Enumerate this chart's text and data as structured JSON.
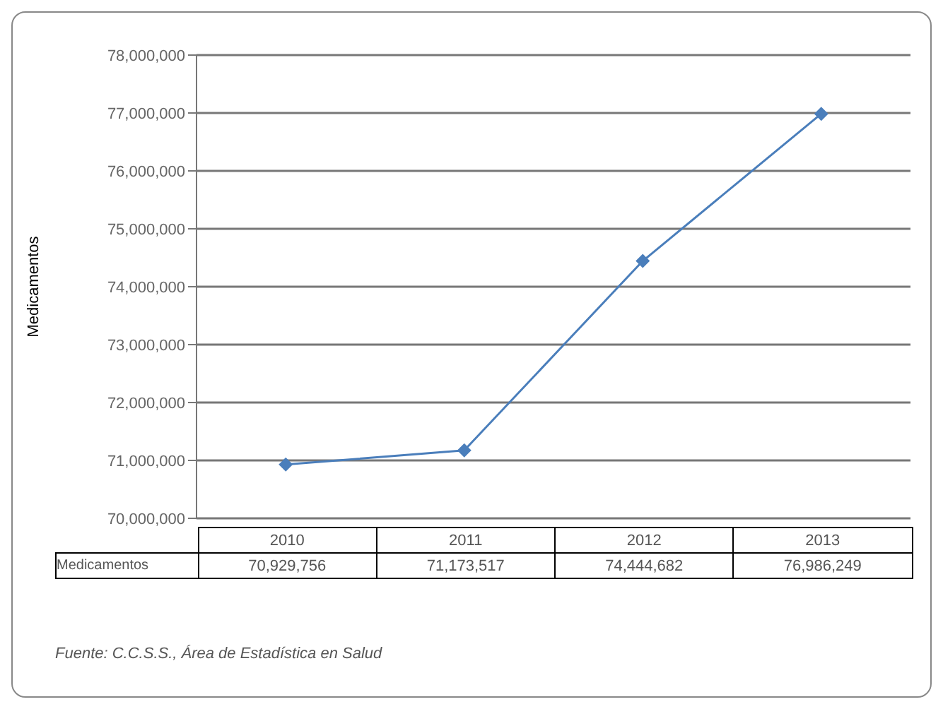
{
  "chart_data": {
    "type": "line",
    "ylabel": "Medicamentos",
    "categories": [
      "2010",
      "2011",
      "2012",
      "2013"
    ],
    "series": [
      {
        "name": "Medicamentos",
        "color": "#4a7ebb",
        "values": [
          70929756,
          71173517,
          74444682,
          76986249
        ],
        "value_labels": [
          "70,929,756",
          "71,173,517",
          "74,444,682",
          "76,986,249"
        ]
      }
    ],
    "ylim": [
      70000000,
      78000000
    ],
    "yticks": [
      {
        "value": 70000000,
        "label": "70,000,000"
      },
      {
        "value": 71000000,
        "label": "71,000,000"
      },
      {
        "value": 72000000,
        "label": "72,000,000"
      },
      {
        "value": 73000000,
        "label": "73,000,000"
      },
      {
        "value": 74000000,
        "label": "74,000,000"
      },
      {
        "value": 75000000,
        "label": "75,000,000"
      },
      {
        "value": 76000000,
        "label": "76,000,000"
      },
      {
        "value": 77000000,
        "label": "77,000,000"
      },
      {
        "value": 78000000,
        "label": "78,000,000"
      }
    ],
    "grid": "y",
    "marker": "diamond",
    "line_style": "solid",
    "annotations": [
      "Fuente: C.C.S.S., Área de Estadística en Salud"
    ]
  }
}
